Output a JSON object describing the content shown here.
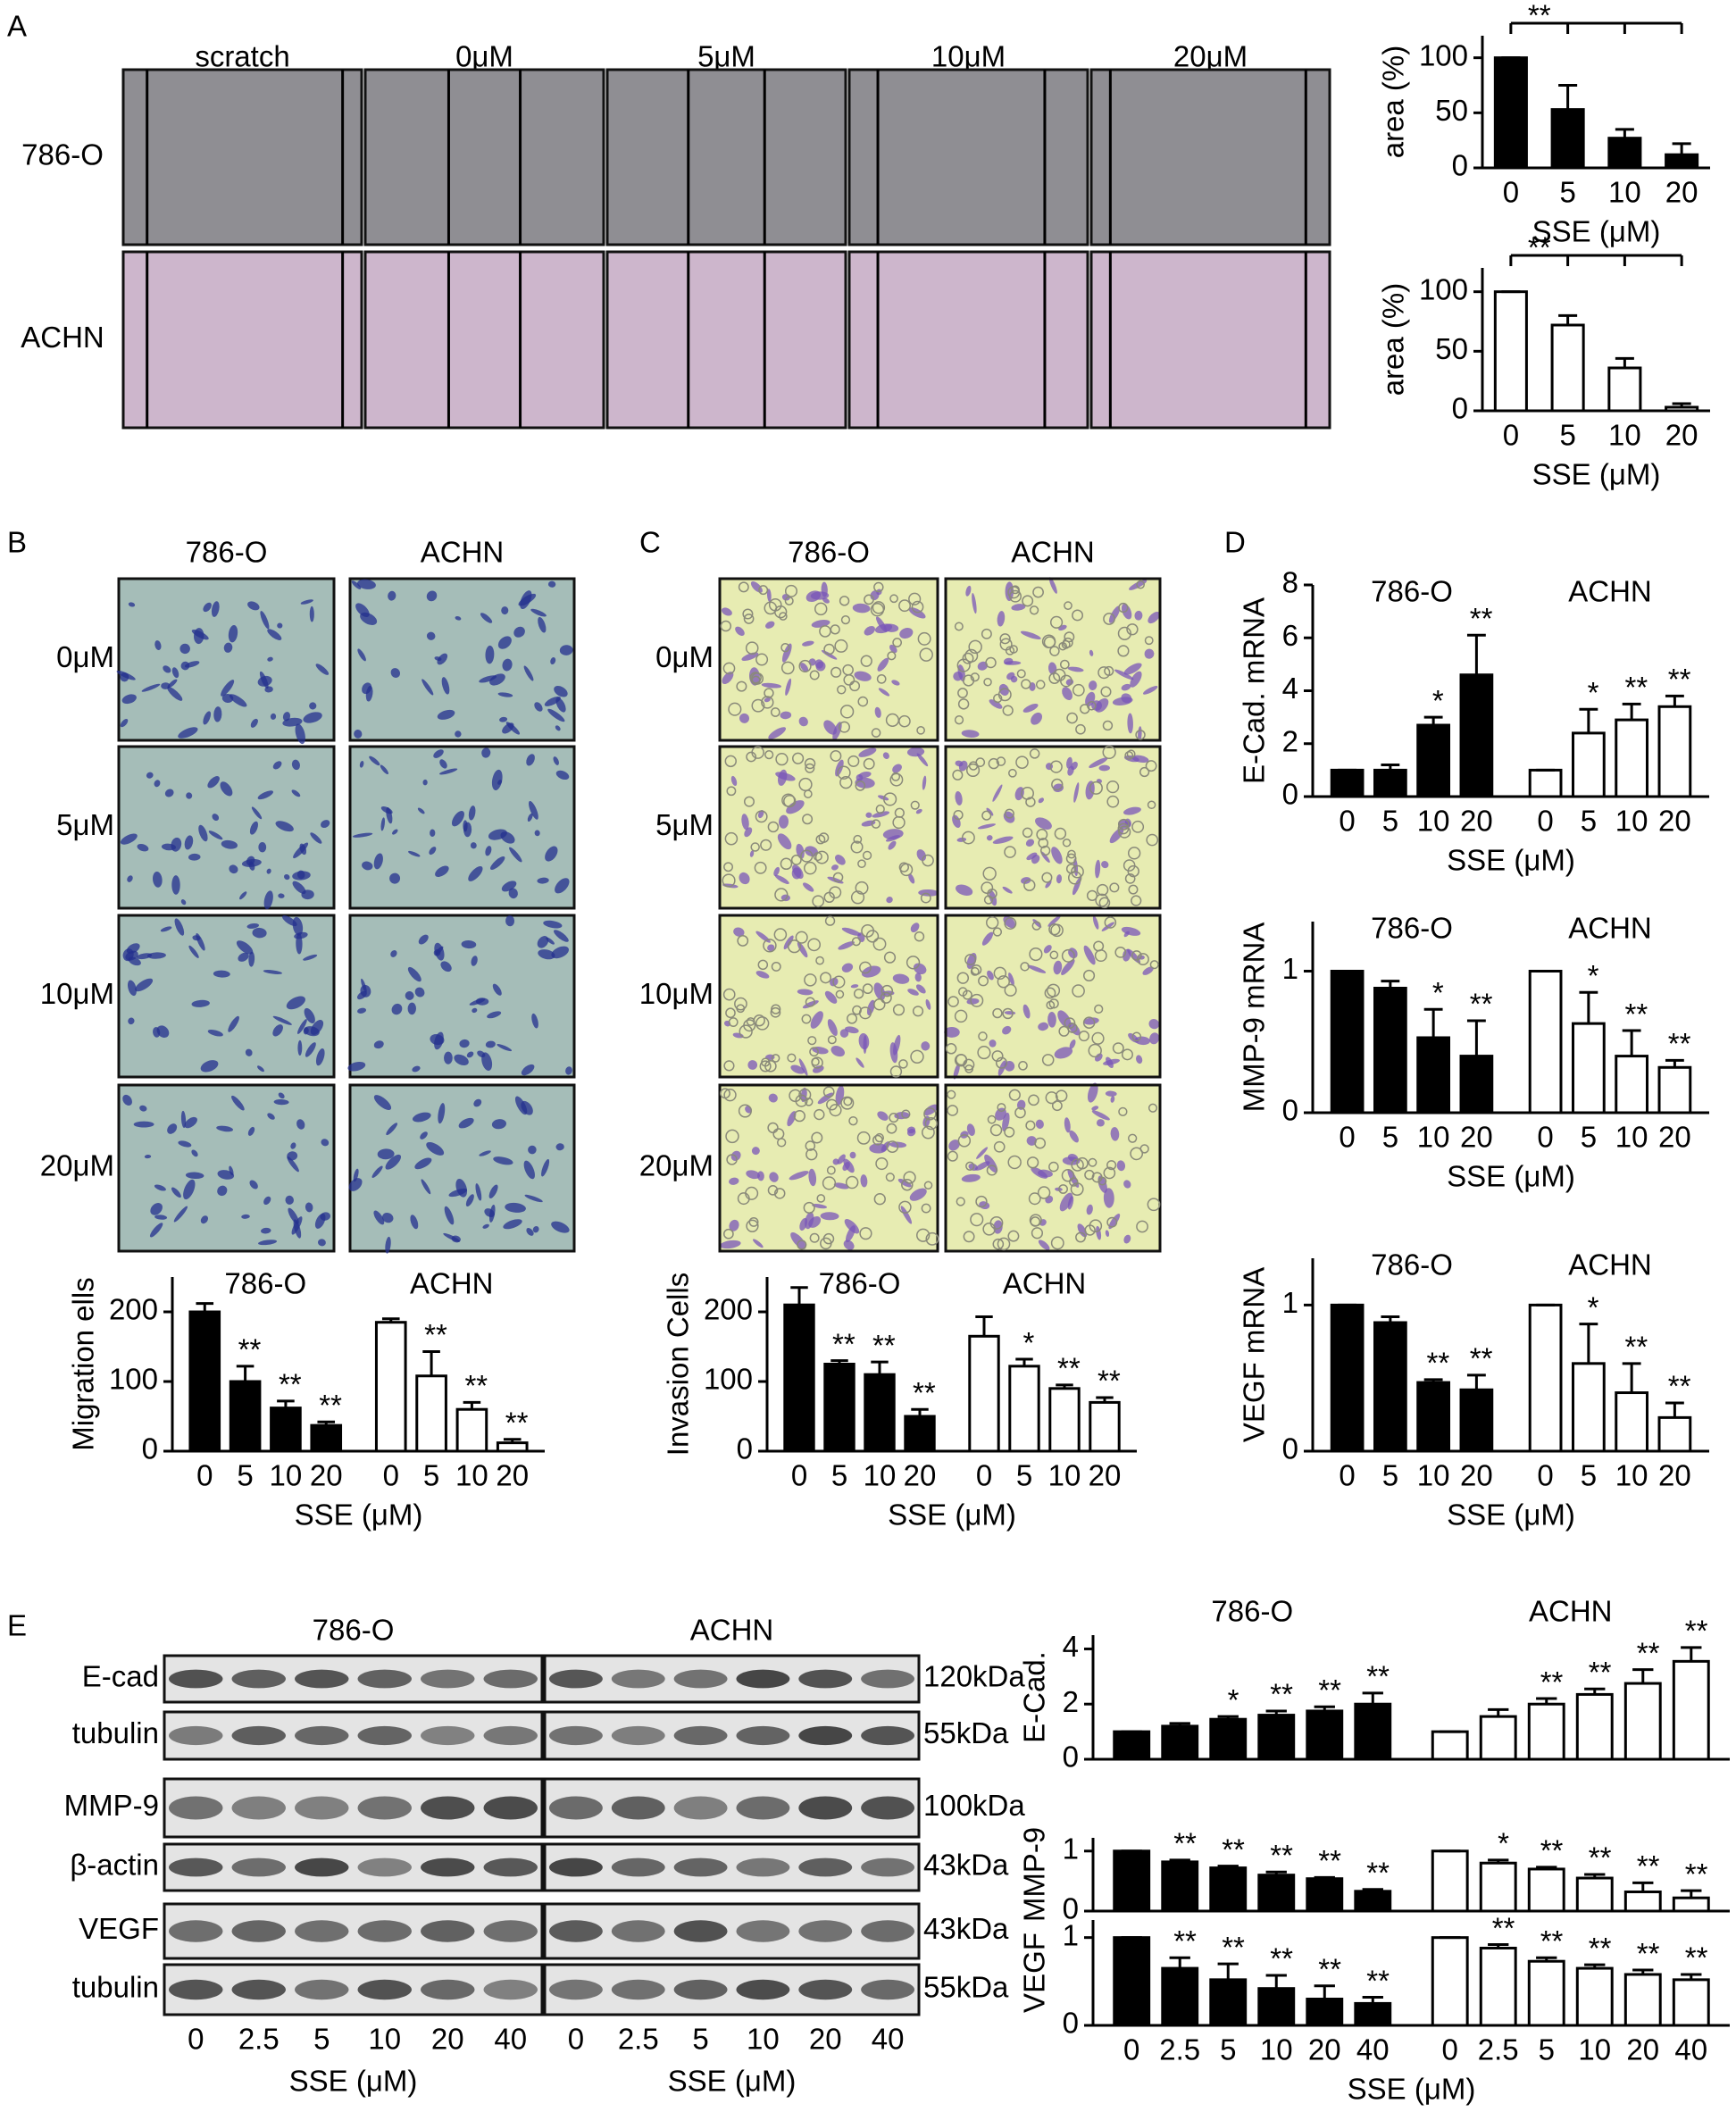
{
  "figure": {
    "panel_labels": [
      "A",
      "B",
      "C",
      "D",
      "E"
    ],
    "wound": {
      "columns": [
        "scratch",
        "0μM",
        "5μM",
        "10μM",
        "20μM"
      ],
      "rows": [
        "786-O",
        "ACHN"
      ]
    },
    "migration": {
      "columns": [
        "786-O",
        "ACHN"
      ],
      "rows": [
        "0μM",
        "5μM",
        "10μM",
        "20μM"
      ]
    },
    "invasion": {
      "columns": [
        "786-O",
        "ACHN"
      ],
      "rows": [
        "0μM",
        "5μM",
        "10μM",
        "20μM"
      ]
    },
    "blots": {
      "groups": [
        "786-O",
        "ACHN"
      ],
      "rows": [
        {
          "label": "E-cad",
          "size": "120kDa"
        },
        {
          "label": "tubulin",
          "size": "55kDa"
        },
        {
          "label": "MMP-9",
          "size": "100kDa"
        },
        {
          "label": "β-actin",
          "size": "43kDa"
        },
        {
          "label": "VEGF",
          "size": "43kDa"
        },
        {
          "label": "tubulin",
          "size": "55kDa"
        }
      ],
      "lanes": [
        "0",
        "2.5",
        "5",
        "10",
        "20",
        "40"
      ],
      "xlabel": "SSE (μM)"
    }
  },
  "chart_data": [
    {
      "type": "bar",
      "ylabel": "area (%)",
      "xlabel": "SSE (μM)",
      "categories": [
        "0",
        "5",
        "10",
        "20"
      ],
      "annotation": "**",
      "series": [
        {
          "color": "#000000",
          "values": [
            100,
            53,
            27,
            12
          ],
          "errors": [
            0,
            22,
            8,
            10
          ]
        }
      ],
      "ylim": [
        0,
        120
      ],
      "yticks": [
        0,
        50,
        100
      ]
    },
    {
      "type": "bar",
      "ylabel": "area (%)",
      "xlabel": "SSE (μM)",
      "categories": [
        "0",
        "5",
        "10",
        "20"
      ],
      "annotation": "**",
      "series": [
        {
          "color": "#ffffff",
          "values": [
            100,
            72,
            36,
            3
          ],
          "errors": [
            0,
            8,
            8,
            3
          ]
        }
      ],
      "ylim": [
        0,
        120
      ],
      "yticks": [
        0,
        50,
        100
      ]
    },
    {
      "type": "bar",
      "ylabel": "Migration ells",
      "xlabel": "SSE (μM)",
      "categories": [
        "0",
        "5",
        "10",
        "20"
      ],
      "legend": "top",
      "series": [
        {
          "name": "786-O",
          "color": "#000000",
          "values": [
            200,
            100,
            62,
            37
          ],
          "errors": [
            12,
            22,
            10,
            5
          ],
          "labels": [
            null,
            "**",
            "**",
            "**"
          ]
        },
        {
          "name": "ACHN",
          "color": "#ffffff",
          "values": [
            185,
            108,
            60,
            12
          ],
          "errors": [
            5,
            35,
            10,
            5
          ],
          "labels": [
            null,
            "**",
            "**",
            "**"
          ]
        }
      ],
      "ylim": [
        0,
        250
      ],
      "yticks": [
        0,
        100,
        200
      ]
    },
    {
      "type": "bar",
      "ylabel": "Invasion Cells",
      "xlabel": "SSE (μM)",
      "categories": [
        "0",
        "5",
        "10",
        "20"
      ],
      "legend": "top",
      "series": [
        {
          "name": "786-O",
          "color": "#000000",
          "values": [
            210,
            125,
            110,
            50
          ],
          "errors": [
            25,
            5,
            18,
            10
          ],
          "labels": [
            null,
            "**",
            "**",
            "**"
          ]
        },
        {
          "name": "ACHN",
          "color": "#ffffff",
          "values": [
            165,
            122,
            90,
            70
          ],
          "errors": [
            28,
            10,
            5,
            7
          ],
          "labels": [
            null,
            "*",
            "**",
            "**"
          ]
        }
      ],
      "ylim": [
        0,
        250
      ],
      "yticks": [
        0,
        100,
        200
      ]
    },
    {
      "type": "bar",
      "ylabel": "E-Cad. mRNA",
      "xlabel": "SSE (μM)",
      "categories": [
        "0",
        "5",
        "10",
        "20"
      ],
      "legend": "top",
      "series": [
        {
          "name": "786-O",
          "color": "#000000",
          "values": [
            1,
            1,
            2.7,
            4.6
          ],
          "errors": [
            0,
            0.2,
            0.3,
            1.5
          ],
          "labels": [
            null,
            null,
            "*",
            "**"
          ]
        },
        {
          "name": "ACHN",
          "color": "#ffffff",
          "values": [
            1,
            2.4,
            2.9,
            3.4
          ],
          "errors": [
            0,
            0.9,
            0.6,
            0.4
          ],
          "labels": [
            null,
            "*",
            "**",
            "**"
          ]
        }
      ],
      "ylim": [
        0,
        8
      ],
      "yticks": [
        0,
        2,
        4,
        6,
        8
      ]
    },
    {
      "type": "bar",
      "ylabel": "MMP-9 mRNA",
      "xlabel": "SSE (μM)",
      "categories": [
        "0",
        "5",
        "10",
        "20"
      ],
      "legend": "top",
      "series": [
        {
          "name": "786-O",
          "color": "#000000",
          "values": [
            1,
            0.88,
            0.53,
            0.4
          ],
          "errors": [
            0,
            0.05,
            0.2,
            0.25
          ],
          "labels": [
            null,
            null,
            "*",
            "**"
          ]
        },
        {
          "name": "ACHN",
          "color": "#ffffff",
          "values": [
            1,
            0.63,
            0.4,
            0.32
          ],
          "errors": [
            0,
            0.22,
            0.18,
            0.05
          ],
          "labels": [
            null,
            "*",
            "**",
            "**"
          ]
        }
      ],
      "ylim": [
        0,
        1.35
      ],
      "yticks": [
        0,
        1
      ]
    },
    {
      "type": "bar",
      "ylabel": "VEGF mRNA",
      "xlabel": "SSE (μM)",
      "categories": [
        "0",
        "5",
        "10",
        "20"
      ],
      "legend": "top",
      "series": [
        {
          "name": "786-O",
          "color": "#000000",
          "values": [
            1,
            0.88,
            0.47,
            0.42
          ],
          "errors": [
            0,
            0.04,
            0.02,
            0.1
          ],
          "labels": [
            null,
            null,
            "**",
            "**"
          ]
        },
        {
          "name": "ACHN",
          "color": "#ffffff",
          "values": [
            1,
            0.6,
            0.4,
            0.23
          ],
          "errors": [
            0,
            0.27,
            0.2,
            0.1
          ],
          "labels": [
            null,
            "*",
            "**",
            "**"
          ]
        }
      ],
      "ylim": [
        0,
        1.32
      ],
      "yticks": [
        0,
        1
      ]
    },
    {
      "type": "bar",
      "ylabel": "E-Cad.",
      "legend": "above",
      "series": [
        {
          "name": "786-O",
          "color": "#000000",
          "values": [
            1,
            1.2,
            1.45,
            1.6,
            1.75,
            2.0
          ],
          "errors": [
            0,
            0.1,
            0.1,
            0.15,
            0.15,
            0.4
          ],
          "labels": [
            null,
            null,
            "*",
            "**",
            "**",
            "**"
          ]
        },
        {
          "name": "ACHN",
          "color": "#ffffff",
          "values": [
            1,
            1.55,
            2.0,
            2.35,
            2.75,
            3.55
          ],
          "errors": [
            0,
            0.25,
            0.2,
            0.2,
            0.5,
            0.5
          ],
          "labels": [
            null,
            null,
            "**",
            "**",
            "**",
            "**"
          ]
        }
      ],
      "ylim": [
        0,
        4.5
      ],
      "yticks": [
        0,
        2,
        4
      ]
    },
    {
      "type": "bar",
      "ylabel": "MMP-9",
      "series": [
        {
          "color": "#000000",
          "values": [
            1,
            0.82,
            0.72,
            0.6,
            0.54,
            0.33
          ],
          "errors": [
            0,
            0.03,
            0.03,
            0.05,
            0.02,
            0.03
          ],
          "labels": [
            null,
            "**",
            "**",
            "**",
            "**",
            "**"
          ]
        },
        {
          "color": "#ffffff",
          "values": [
            1,
            0.8,
            0.7,
            0.55,
            0.32,
            0.22
          ],
          "errors": [
            0,
            0.05,
            0.03,
            0.06,
            0.15,
            0.12
          ],
          "labels": [
            null,
            "*",
            "**",
            "**",
            "**",
            "**"
          ]
        }
      ],
      "ylim": [
        0,
        1.22
      ],
      "yticks": [
        0,
        1
      ]
    },
    {
      "type": "bar",
      "ylabel": "VEGF",
      "xlabel": "SSE (μM)",
      "categories": [
        "0",
        "2.5",
        "5",
        "10",
        "20",
        "40"
      ],
      "series": [
        {
          "color": "#000000",
          "values": [
            1,
            0.65,
            0.52,
            0.42,
            0.3,
            0.25
          ],
          "errors": [
            0,
            0.12,
            0.18,
            0.15,
            0.15,
            0.07
          ],
          "labels": [
            null,
            "**",
            "**",
            "**",
            "**",
            "**"
          ]
        },
        {
          "color": "#ffffff",
          "values": [
            1,
            0.88,
            0.73,
            0.65,
            0.58,
            0.52
          ],
          "errors": [
            0,
            0.04,
            0.04,
            0.04,
            0.05,
            0.06
          ],
          "labels": [
            null,
            "**",
            "**",
            "**",
            "**",
            "**"
          ]
        }
      ],
      "ylim": [
        0,
        1.2
      ],
      "yticks": [
        0,
        1
      ]
    }
  ]
}
